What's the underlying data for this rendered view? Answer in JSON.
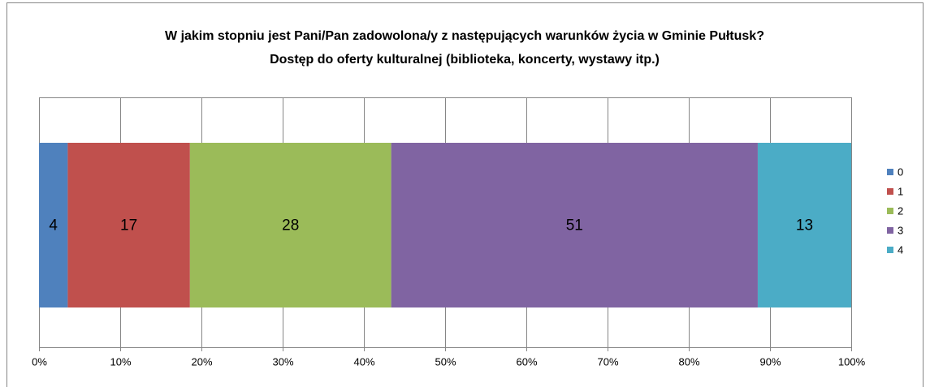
{
  "chart_data": {
    "type": "bar",
    "orientation": "horizontal",
    "stacking": "percent",
    "title": [
      "W jakim stopniu jest Pani/Pan zadowolona/y z następujących warunków życia w Gminie Pułtusk?",
      "Dostęp do oferty kulturalnej (biblioteka, koncerty, wystawy itp.)"
    ],
    "series": [
      {
        "name": "0",
        "color": "#4f81bd",
        "values": [
          4
        ]
      },
      {
        "name": "1",
        "color": "#c0504d",
        "values": [
          17
        ]
      },
      {
        "name": "2",
        "color": "#9bbb59",
        "values": [
          28
        ]
      },
      {
        "name": "3",
        "color": "#8064a2",
        "values": [
          51
        ]
      },
      {
        "name": "4",
        "color": "#4bacc6",
        "values": [
          13
        ]
      }
    ],
    "xlim": [
      0,
      100
    ],
    "xticks": [
      {
        "value": 0,
        "label": "0%"
      },
      {
        "value": 10,
        "label": "10%"
      },
      {
        "value": 20,
        "label": "20%"
      },
      {
        "value": 30,
        "label": "30%"
      },
      {
        "value": 40,
        "label": "40%"
      },
      {
        "value": 50,
        "label": "50%"
      },
      {
        "value": 60,
        "label": "60%"
      },
      {
        "value": 70,
        "label": "70%"
      },
      {
        "value": 80,
        "label": "80%"
      },
      {
        "value": 90,
        "label": "90%"
      },
      {
        "value": 100,
        "label": "100%"
      }
    ],
    "grid": true,
    "legend": "right"
  }
}
